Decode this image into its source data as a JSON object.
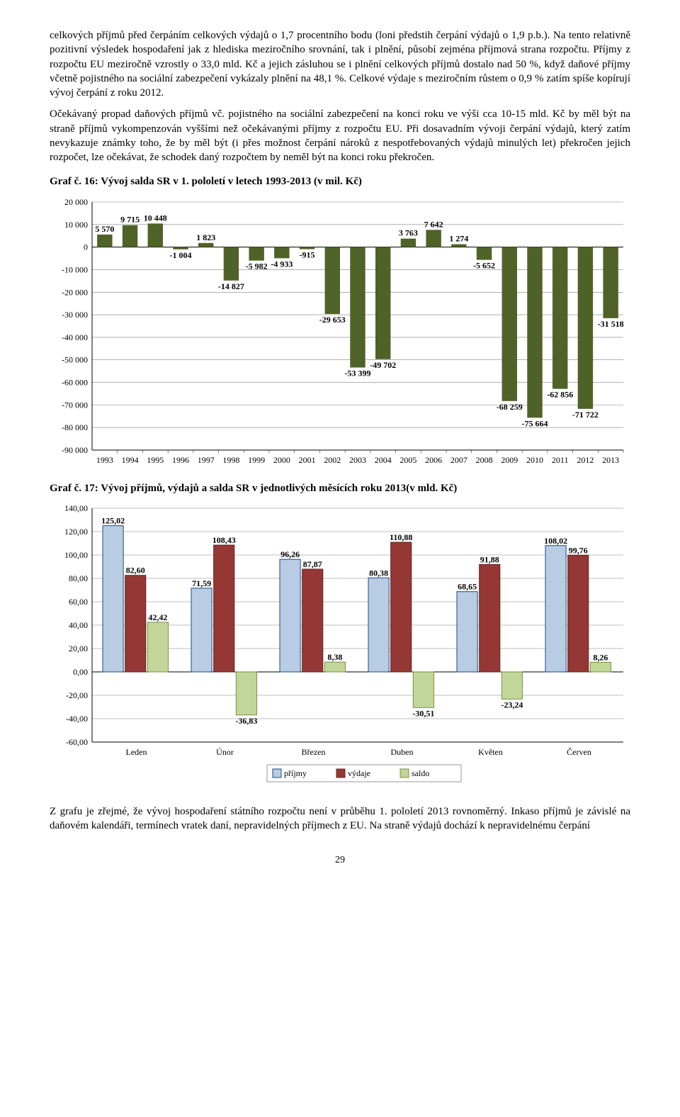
{
  "paragraphs": {
    "p1": "celkových příjmů před čerpáním celkových výdajů o 1,7 procentního bodu (loni předstih čerpání výdajů o 1,9 p.b.). Na tento relativně pozitivní výsledek hospodaření jak z hlediska meziročního srovnání, tak i plnění, působí zejména příjmová strana rozpočtu. Příjmy z rozpočtu EU meziročně vzrostly o 33,0 mld. Kč a jejich zásluhou se i plnění celkových příjmů dostalo nad 50 %, když daňové příjmy včetně pojistného na sociální zabezpečení vykázaly plnění na 48,1 %. Celkové výdaje s meziročním růstem o 0,9 % zatím spíše kopírují vývoj čerpání z roku 2012.",
    "p2": "Očekávaný propad daňových příjmů vč. pojistného na sociální zabezpečení na konci roku ve výši cca 10-15 mld. Kč by měl být na straně příjmů vykompenzován vyššími než očekávanými příjmy z rozpočtu EU. Při dosavadním vývoji čerpání výdajů, který zatím nevykazuje známky toho, že by měl být (i přes možnost čerpání nároků z nespotřebovaných výdajů minulých let) překročen jejich rozpočet, lze očekávat, že schodek daný rozpočtem by neměl být na konci roku překročen.",
    "p3": "Z grafu je zřejmé, že vývoj hospodaření státního rozpočtu není v průběhu 1. pololetí 2013 rovnoměrný. Inkaso příjmů je závislé na daňovém kalendáři, termínech vratek daní, nepravidelných příjmech z EU. Na straně výdajů dochází k nepravidelnému čerpání"
  },
  "chart16_title": "Graf č. 16: Vývoj salda SR v 1. pololetí v letech 1993-2013 (v mil. Kč)",
  "chart17_title": "Graf č. 17: Vývoj příjmů, výdajů a salda SR v jednotlivých měsících roku 2013(v mld. Kč)",
  "page_number": "29",
  "chart16": {
    "type": "bar",
    "categories": [
      "1993",
      "1994",
      "1995",
      "1996",
      "1997",
      "1998",
      "1999",
      "2000",
      "2001",
      "2002",
      "2003",
      "2004",
      "2005",
      "2006",
      "2007",
      "2008",
      "2009",
      "2010",
      "2011",
      "2012",
      "2013"
    ],
    "values": [
      5570,
      9715,
      10448,
      -1004,
      1823,
      -14827,
      -5982,
      -4933,
      -915,
      -29653,
      -53399,
      -49702,
      3763,
      7642,
      1274,
      -5652,
      -68259,
      -75664,
      -62856,
      -71722,
      -31518
    ],
    "value_labels": [
      "5 570",
      "9 715",
      "10 448",
      "-1 004",
      "1 823",
      "-14 827",
      "-5 982",
      "-4 933",
      "-915",
      "-29 653",
      "-53 399",
      "-49 702",
      "3 763",
      "7 642",
      "1 274",
      "-5 652",
      "-68 259",
      "-75 664",
      "-62 856",
      "-71 722",
      "-31 518"
    ],
    "bar_color": "#4f6228",
    "ylim": [
      -90000,
      20000
    ],
    "yticks": [
      20000,
      10000,
      0,
      -10000,
      -20000,
      -30000,
      -40000,
      -50000,
      -60000,
      -70000,
      -80000,
      -90000
    ],
    "ytick_labels": [
      "20 000",
      "10 000",
      "0",
      "-10 000",
      "-20 000",
      "-30 000",
      "-40 000",
      "-50 000",
      "-60 000",
      "-70 000",
      "-80 000",
      "-90 000"
    ],
    "grid_color": "#808080",
    "background": "#ffffff",
    "label_fontsize": 12
  },
  "chart17": {
    "type": "grouped-bar",
    "categories": [
      "Leden",
      "Únor",
      "Březen",
      "Duben",
      "Květen",
      "Červen"
    ],
    "series": [
      {
        "name": "příjmy",
        "color": "#b8cce4",
        "border": "#1f497d",
        "values": [
          125.02,
          71.59,
          96.26,
          80.38,
          68.65,
          108.02
        ],
        "labels": [
          "125,02",
          "71,59",
          "96,26",
          "80,38",
          "68,65",
          "108,02"
        ]
      },
      {
        "name": "výdaje",
        "color": "#953735",
        "border": "#632523",
        "values": [
          82.6,
          108.43,
          87.87,
          110.88,
          91.88,
          99.76
        ],
        "labels": [
          "82,60",
          "108,43",
          "87,87",
          "110,88",
          "91,88",
          "99,76"
        ]
      },
      {
        "name": "saldo",
        "color": "#c2d69a",
        "border": "#76923c",
        "values": [
          42.42,
          -36.83,
          8.38,
          -30.51,
          -23.24,
          8.26
        ],
        "labels": [
          "42,42",
          "-36,83",
          "8,38",
          "-30,51",
          "-23,24",
          "8,26"
        ]
      }
    ],
    "ylim": [
      -60,
      140
    ],
    "yticks": [
      140,
      120,
      100,
      80,
      60,
      40,
      20,
      0,
      -20,
      -40,
      -60
    ],
    "ytick_labels": [
      "140,00",
      "120,00",
      "100,00",
      "80,00",
      "60,00",
      "40,00",
      "20,00",
      "0,00",
      "-20,00",
      "-40,00",
      "-60,00"
    ],
    "grid_color": "#808080",
    "background": "#ffffff",
    "legend": [
      "příjmy",
      "výdaje",
      "saldo"
    ]
  }
}
